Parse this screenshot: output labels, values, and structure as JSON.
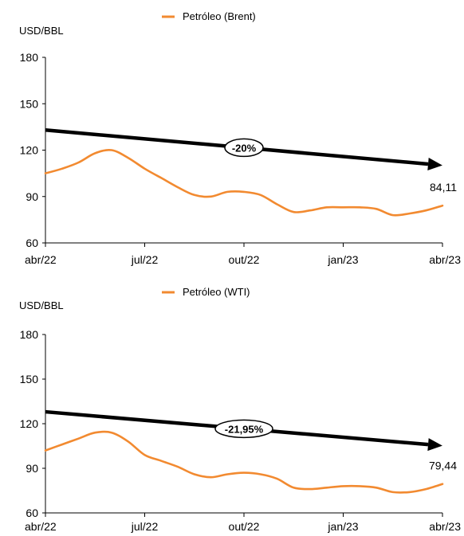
{
  "chart_data": [
    {
      "type": "line",
      "ylabel": "USD/BBL",
      "ylim": [
        60,
        180
      ],
      "yticks": [
        60,
        90,
        120,
        150,
        180
      ],
      "xticks": [
        "abr/22",
        "jul/22",
        "out/22",
        "jan/23",
        "abr/23"
      ],
      "legend_position": "top-center",
      "grid": false,
      "series": [
        {
          "name": "Petróleo (Brent)",
          "color": "#f28a30",
          "x": [
            0,
            0.5,
            1,
            1.5,
            2,
            2.5,
            3,
            3.5,
            4,
            4.5,
            5,
            5.5,
            6,
            6.5,
            7,
            7.5,
            8,
            8.5,
            9,
            9.5,
            10,
            10.5,
            11,
            11.5,
            12
          ],
          "values": [
            105,
            108,
            112,
            118,
            120,
            115,
            108,
            102,
            96,
            91,
            90,
            93,
            93,
            91,
            85,
            80,
            81,
            83,
            83,
            83,
            82,
            78,
            79,
            81,
            84.11
          ]
        }
      ],
      "trend": {
        "start": 133,
        "end": 111,
        "label": "-20%"
      },
      "end_label": "84,11"
    },
    {
      "type": "line",
      "ylabel": "USD/BBL",
      "ylim": [
        60,
        180
      ],
      "yticks": [
        60,
        90,
        120,
        150,
        180
      ],
      "xticks": [
        "abr/22",
        "jul/22",
        "out/22",
        "jan/23",
        "abr/23"
      ],
      "legend_position": "top-center",
      "grid": false,
      "series": [
        {
          "name": "Petróleo (WTI)",
          "color": "#f28a30",
          "x": [
            0,
            0.5,
            1,
            1.5,
            2,
            2.5,
            3,
            3.5,
            4,
            4.5,
            5,
            5.5,
            6,
            6.5,
            7,
            7.5,
            8,
            8.5,
            9,
            9.5,
            10,
            10.5,
            11,
            11.5,
            12
          ],
          "values": [
            102,
            106,
            110,
            114,
            114,
            108,
            99,
            95,
            91,
            86,
            84,
            86,
            87,
            86,
            83,
            77,
            76,
            77,
            78,
            78,
            77,
            74,
            74,
            76,
            79.44
          ]
        }
      ],
      "trend": {
        "start": 128,
        "end": 106,
        "label": "-21,95%"
      },
      "end_label": "79,44"
    }
  ]
}
